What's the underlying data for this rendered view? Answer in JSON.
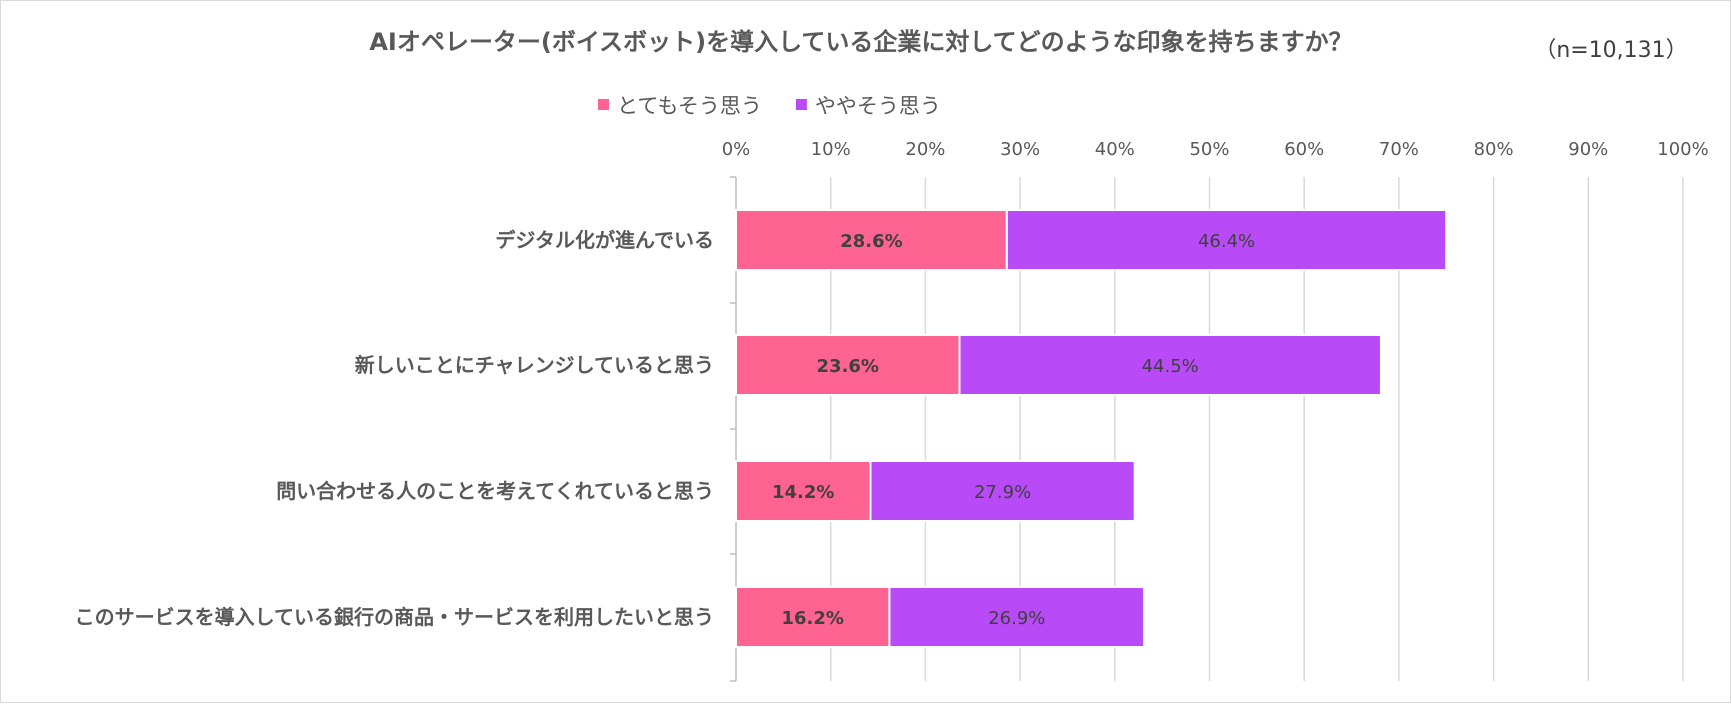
{
  "chart_data": {
    "type": "bar",
    "orientation": "horizontal",
    "stacked": true,
    "title": "AIオペレーター(ボイスボット)を導入している企業に対してどのような印象を持ちますか？",
    "sample_note": "（n=10,131）",
    "categories": [
      "デジタル化が進んでいる",
      "新しいことにチャレンジしていると思う",
      "問い合わせる人のことを考えてくれていると思う",
      "このサービスを導入している銀行の商品・サービスを利用したいと思う"
    ],
    "series": [
      {
        "name": "とてもそう思う",
        "color": "#ff6392",
        "values": [
          28.6,
          23.6,
          14.2,
          16.2
        ],
        "labels": [
          "28.6%",
          "23.6%",
          "14.2%",
          "16.2%"
        ],
        "label_weight": "bold"
      },
      {
        "name": "ややそう思う",
        "color": "#b84af7",
        "values": [
          46.4,
          44.5,
          27.9,
          26.9
        ],
        "labels": [
          "46.4%",
          "44.5%",
          "27.9%",
          "26.9%"
        ],
        "label_weight": "normal"
      }
    ],
    "xlim": [
      0,
      100
    ],
    "xticks": [
      0,
      10,
      20,
      30,
      40,
      50,
      60,
      70,
      80,
      90,
      100
    ],
    "xtick_labels": [
      "0%",
      "10%",
      "20%",
      "30%",
      "40%",
      "50%",
      "60%",
      "70%",
      "80%",
      "90%",
      "100%"
    ],
    "x_axis_position": "top",
    "grid": true,
    "legend_position": "top"
  }
}
